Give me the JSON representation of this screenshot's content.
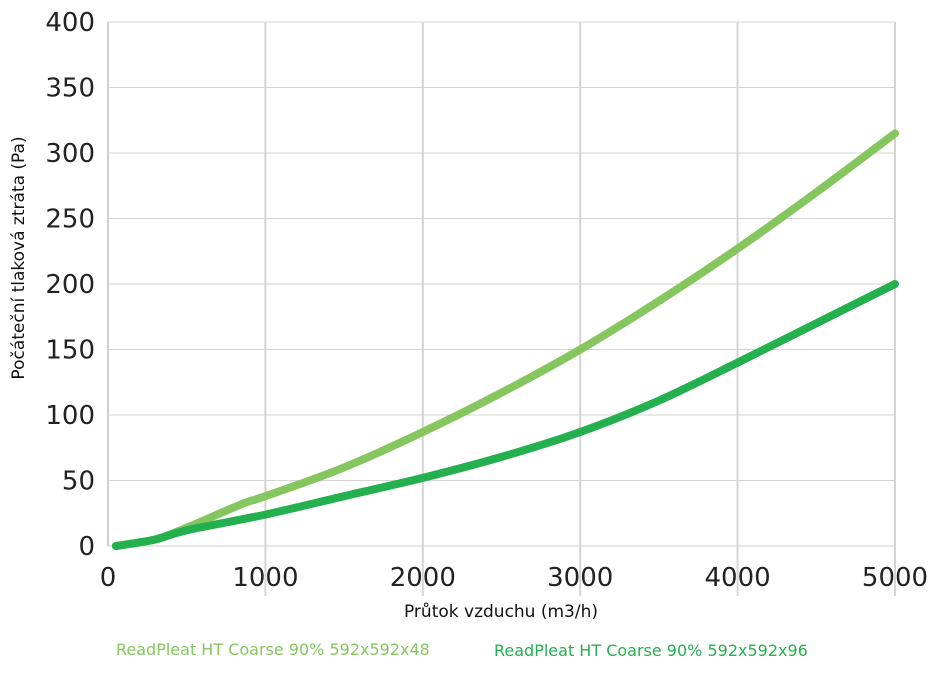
{
  "chart_data": {
    "type": "line",
    "xlabel": "Průtok vzduchu (m3/h)",
    "ylabel": "Počáteční tlaková ztráta (Pa)",
    "xlim": [
      0,
      5000
    ],
    "ylim": [
      0,
      400
    ],
    "x_ticks": [
      "0",
      "1000",
      "2000",
      "3000",
      "4000",
      "5000"
    ],
    "y_ticks": [
      "0",
      "50",
      "100",
      "150",
      "200",
      "250",
      "300",
      "350",
      "400"
    ],
    "grid": true,
    "legend_position": "bottom",
    "series": [
      {
        "name": "ReadPleat HT Coarse 90% 592x592x48",
        "color": "#86c65f",
        "x": [
          50,
          300,
          500,
          850,
          1000,
          1500,
          2000,
          2500,
          3000,
          3500,
          4000,
          4500,
          5000
        ],
        "y": [
          0,
          5,
          14,
          32,
          38,
          60,
          87,
          117,
          150,
          187,
          227,
          270,
          315
        ]
      },
      {
        "name": "ReadPleat HT Coarse 90% 592x592x96",
        "color": "#25b04f",
        "x": [
          50,
          300,
          500,
          1000,
          1500,
          2000,
          2500,
          3000,
          3500,
          4000,
          4500,
          5000
        ],
        "y": [
          0,
          5,
          12,
          24,
          38,
          52,
          68,
          87,
          111,
          140,
          170,
          200
        ]
      }
    ]
  }
}
